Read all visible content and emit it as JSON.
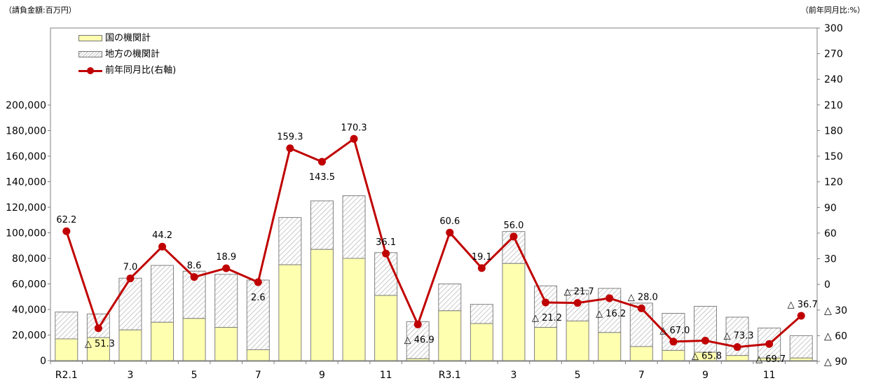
{
  "header": {
    "left_unit": "（請負金額:百万円）",
    "right_unit": "（前年同月比:%）"
  },
  "chart_data": {
    "type": "bar",
    "x_tick_labels": [
      "R2.1",
      "3",
      "5",
      "7",
      "9",
      "11",
      "R3.1",
      "3",
      "5",
      "7",
      "9",
      "11"
    ],
    "categories": [
      "R2.1",
      "R2.2",
      "R2.3",
      "R2.4",
      "R2.5",
      "R2.6",
      "R2.7",
      "R2.8",
      "R2.9",
      "R2.10",
      "R2.11",
      "R2.12",
      "R3.1",
      "R3.2",
      "R3.3",
      "R3.4",
      "R3.5",
      "R3.6",
      "R3.7",
      "R3.8",
      "R3.9",
      "R3.10",
      "R3.11",
      "R3.12"
    ],
    "series": [
      {
        "name": "国の機関計",
        "kind": "bar-stacked",
        "color": "#ffffb0",
        "values": [
          17000,
          18000,
          24000,
          30000,
          33000,
          26000,
          8500,
          75000,
          87000,
          80000,
          51000,
          1500,
          39000,
          29000,
          76000,
          26000,
          31000,
          22000,
          11000,
          8000,
          6500,
          4000,
          2000,
          2000
        ]
      },
      {
        "name": "地方の機関計",
        "kind": "bar-stacked",
        "color": "#bbbbbb",
        "values": [
          21000,
          18500,
          40500,
          44500,
          37000,
          41500,
          54500,
          37000,
          38000,
          49000,
          33500,
          29000,
          21000,
          15000,
          25000,
          32500,
          24000,
          34500,
          34000,
          29000,
          36000,
          30000,
          23500,
          17500
        ]
      },
      {
        "name": "前年同月比(右軸)",
        "kind": "line",
        "axis": "right",
        "color": "#c00000",
        "values": [
          62.2,
          -51.3,
          7.0,
          44.2,
          8.6,
          18.9,
          2.6,
          159.3,
          143.5,
          170.3,
          36.1,
          -46.9,
          60.6,
          19.1,
          56.0,
          -21.2,
          -21.7,
          -16.2,
          -28.0,
          -67.0,
          -65.8,
          -73.3,
          -69.7,
          -36.7
        ]
      }
    ],
    "line_labels": [
      "62.2",
      "△ 51.3",
      "7.0",
      "44.2",
      "8.6",
      "18.9",
      "2.6",
      "159.3",
      "143.5",
      "170.3",
      "36.1",
      "△ 46.9",
      "60.6",
      "19.1",
      "56.0",
      "△ 21.2",
      "△ 21.7",
      "△ 16.2",
      "△ 28.0",
      "△ 67.0",
      "△ 65.8",
      "△ 73.3",
      "△ 69.7",
      "△ 36.7"
    ],
    "left_axis": {
      "ylim": [
        0,
        200000
      ],
      "tick_values": [
        0,
        20000,
        40000,
        60000,
        80000,
        100000,
        120000,
        140000,
        160000,
        180000,
        200000
      ],
      "tick_labels": [
        "0",
        "20,000",
        "40,000",
        "60,000",
        "80,000",
        "100,000",
        "120,000",
        "140,000",
        "160,000",
        "180,000",
        "200,000"
      ]
    },
    "right_axis": {
      "ylim": [
        -90,
        300
      ],
      "tick_values": [
        300,
        270,
        240,
        210,
        180,
        150,
        120,
        90,
        60,
        30,
        0,
        -30,
        -60,
        -90
      ],
      "tick_labels": [
        "300",
        "270",
        "240",
        "210",
        "180",
        "150",
        "120",
        "90",
        "60",
        "30",
        "0",
        "△ 30",
        "△ 60",
        "△ 90"
      ]
    },
    "legend_position": "top-left",
    "grid": false
  }
}
